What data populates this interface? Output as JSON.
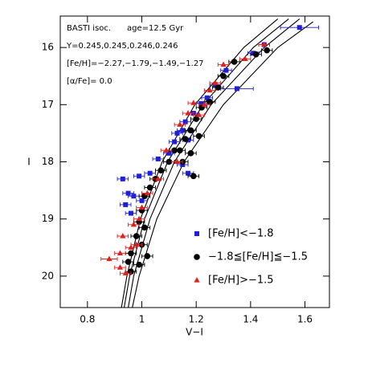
{
  "chart_data": {
    "type": "scatter",
    "x_label": "V−I",
    "y_label": "I",
    "annotations": [
      "BASTI isoc.",
      "age=12.5 Gyr",
      "Y=0.245,0.245,0.246,0.246",
      "[Fe/H]=−2.27,−1.79,−1.49,−1.27",
      "[α/Fe]= 0.0"
    ],
    "xlim": [
      0.7,
      1.69
    ],
    "ylim": [
      20.55,
      15.45
    ],
    "xticks": [
      0.8,
      1,
      1.2,
      1.4,
      1.6
    ],
    "yticks": [
      16,
      17,
      18,
      19,
      20
    ],
    "legend": "lower right",
    "isochrones": [
      {
        "color": "#000000",
        "x": [
          0.925,
          0.945,
          0.995,
          1.075,
          1.195,
          1.375,
          1.5
        ],
        "y": [
          20.55,
          20,
          19,
          18,
          17,
          16,
          15.5
        ]
      },
      {
        "color": "#000000",
        "x": [
          0.935,
          0.955,
          1.01,
          1.095,
          1.225,
          1.41,
          1.54
        ],
        "y": [
          20.55,
          20,
          19,
          18,
          17,
          16,
          15.5
        ]
      },
      {
        "color": "#000000",
        "x": [
          0.95,
          0.97,
          1.03,
          1.12,
          1.255,
          1.45,
          1.58
        ],
        "y": [
          20.55,
          20,
          19,
          18,
          17,
          16,
          15.5
        ]
      },
      {
        "color": "#000000",
        "x": [
          0.965,
          0.99,
          1.055,
          1.155,
          1.3,
          1.5,
          1.63
        ],
        "y": [
          20.55,
          20,
          19,
          18,
          17,
          16,
          15.55
        ]
      }
    ],
    "series": [
      {
        "name": "[Fe/H]<−1.8",
        "color": "#1f1fd6",
        "marker": "square",
        "x": [
          1.58,
          1.45,
          1.41,
          1.35,
          1.31,
          1.27,
          1.24,
          1.22,
          1.19,
          1.16,
          1.15,
          1.13,
          1.17,
          1.12,
          1.1,
          1.06,
          1.15,
          1.03,
          0.99,
          0.93,
          0.95,
          0.97,
          0.94,
          0.96,
          1.0,
          1.17
        ],
        "values": [
          15.65,
          15.95,
          16.1,
          16.72,
          16.4,
          16.65,
          16.88,
          16.98,
          17.15,
          17.3,
          17.45,
          17.5,
          17.62,
          17.65,
          17.85,
          17.95,
          18.05,
          18.2,
          18.25,
          18.3,
          18.55,
          18.6,
          18.75,
          18.9,
          18.68,
          18.2
        ],
        "xerr": [
          0.07,
          0.02,
          0.02,
          0.06,
          0.02,
          0.02,
          0.02,
          0.02,
          0.02,
          0.02,
          0.02,
          0.02,
          0.02,
          0.02,
          0.02,
          0.02,
          0.02,
          0.02,
          0.02,
          0.02,
          0.02,
          0.02,
          0.02,
          0.02,
          0.02,
          0.02
        ]
      },
      {
        "name": "−1.8≦[Fe/H]≦−1.5",
        "color": "#000000",
        "marker": "circle",
        "x": [
          1.46,
          1.42,
          1.34,
          1.3,
          1.28,
          1.25,
          1.22,
          1.2,
          1.18,
          1.21,
          1.16,
          1.14,
          1.12,
          1.18,
          1.15,
          1.1,
          1.07,
          1.19,
          1.05,
          1.03,
          1.01,
          1.0,
          0.99,
          1.01,
          0.98,
          1.0,
          0.96,
          0.95,
          0.96,
          0.99,
          1.02
        ],
        "values": [
          16.05,
          16.12,
          16.25,
          16.5,
          16.7,
          16.95,
          17.05,
          17.25,
          17.45,
          17.55,
          17.6,
          17.8,
          17.8,
          17.85,
          18.0,
          18.0,
          18.15,
          18.25,
          18.3,
          18.45,
          18.6,
          18.85,
          19.05,
          19.15,
          19.3,
          19.45,
          19.6,
          19.75,
          19.92,
          19.8,
          19.65
        ],
        "xerr": [
          0.02,
          0.02,
          0.02,
          0.02,
          0.02,
          0.02,
          0.02,
          0.02,
          0.02,
          0.02,
          0.02,
          0.02,
          0.02,
          0.02,
          0.02,
          0.02,
          0.02,
          0.02,
          0.02,
          0.02,
          0.02,
          0.02,
          0.02,
          0.02,
          0.02,
          0.02,
          0.02,
          0.02,
          0.02,
          0.02,
          0.02
        ]
      },
      {
        "name": "[Fe/H]>−1.5",
        "color": "#e0201c",
        "marker": "triangle",
        "x": [
          1.45,
          1.38,
          1.3,
          1.27,
          1.25,
          1.19,
          1.23,
          1.17,
          1.21,
          1.14,
          1.09,
          1.13,
          1.06,
          1.02,
          1.0,
          0.99,
          0.97,
          0.93,
          0.98,
          0.92,
          0.88,
          0.92,
          0.94,
          0.96
        ],
        "values": [
          15.95,
          16.2,
          16.3,
          16.62,
          16.75,
          16.97,
          17.0,
          17.15,
          17.18,
          17.35,
          17.8,
          18.0,
          18.3,
          18.55,
          18.8,
          19.0,
          19.1,
          19.3,
          19.45,
          19.6,
          19.7,
          19.85,
          19.95,
          19.5
        ],
        "xerr": [
          0.02,
          0.02,
          0.02,
          0.02,
          0.02,
          0.02,
          0.02,
          0.02,
          0.02,
          0.02,
          0.02,
          0.02,
          0.02,
          0.02,
          0.02,
          0.02,
          0.02,
          0.02,
          0.02,
          0.02,
          0.03,
          0.02,
          0.02,
          0.02
        ]
      }
    ]
  }
}
